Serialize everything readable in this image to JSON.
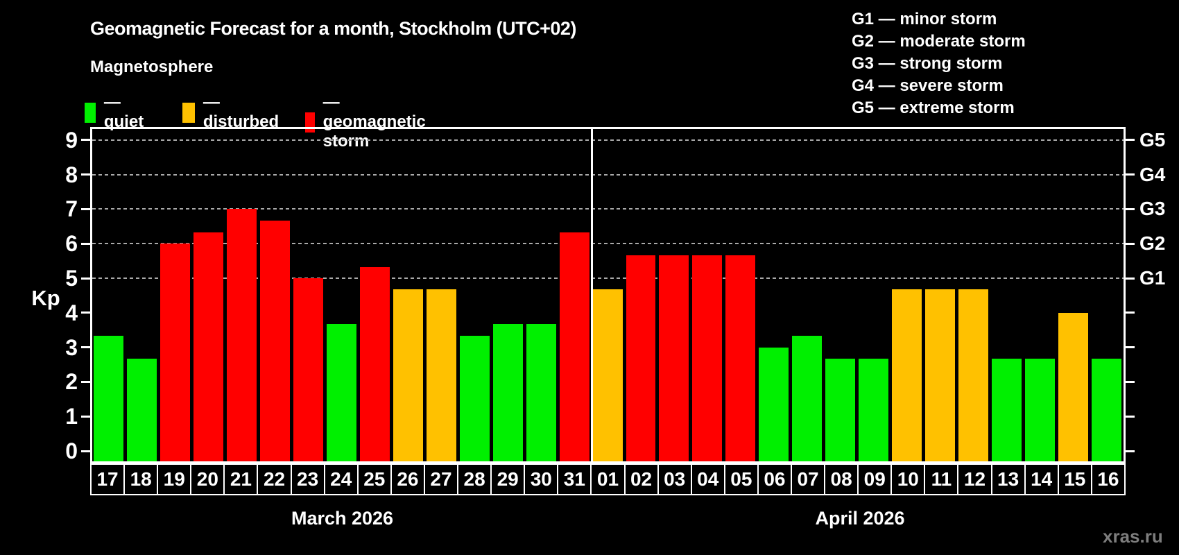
{
  "title": "Geomagnetic Forecast for a month, Stockholm (UTC+02)",
  "subtitle": "Magnetosphere",
  "legend": {
    "quiet": {
      "label": "— quiet",
      "color": "#00f000"
    },
    "disturbed": {
      "label": "— disturbed",
      "color": "#ffc100"
    },
    "storm": {
      "label": "— geomagnetic storm",
      "color": "#ff0000"
    }
  },
  "g_scale": [
    {
      "label": "G1 — minor storm"
    },
    {
      "label": "G2 — moderate storm"
    },
    {
      "label": "G3 — strong storm"
    },
    {
      "label": "G4 — severe storm"
    },
    {
      "label": "G5 — extreme storm"
    }
  ],
  "axis": {
    "kp_label": "Kp",
    "yticks": [
      0,
      1,
      2,
      3,
      4,
      5,
      6,
      7,
      8,
      9
    ],
    "right_labels": [
      {
        "label": "G1",
        "kp": 5
      },
      {
        "label": "G2",
        "kp": 6
      },
      {
        "label": "G3",
        "kp": 7
      },
      {
        "label": "G4",
        "kp": 8
      },
      {
        "label": "G5",
        "kp": 9
      }
    ]
  },
  "months": [
    {
      "name": "March 2026",
      "days": 15
    },
    {
      "name": "April 2026",
      "days": 16
    }
  ],
  "watermark": "xras.ru",
  "chart_data": {
    "type": "bar",
    "ylabel": "Kp",
    "ylim": [
      0,
      9.4
    ],
    "grid": "dashed horizontal at Kp 5-9 only",
    "gridlines_kp": [
      5,
      6,
      7,
      8,
      9
    ],
    "month_split_index": 15,
    "categories": [
      "17",
      "18",
      "19",
      "20",
      "21",
      "22",
      "23",
      "24",
      "25",
      "26",
      "27",
      "28",
      "29",
      "30",
      "31",
      "01",
      "02",
      "03",
      "04",
      "05",
      "06",
      "07",
      "08",
      "09",
      "10",
      "11",
      "12",
      "13",
      "14",
      "15",
      "16"
    ],
    "values": [
      3.33,
      2.67,
      6.0,
      6.33,
      7.0,
      6.67,
      5.0,
      3.67,
      5.33,
      4.67,
      4.67,
      3.33,
      3.67,
      3.67,
      6.33,
      4.67,
      5.67,
      5.67,
      5.67,
      5.67,
      3.0,
      3.33,
      2.67,
      2.67,
      4.67,
      4.67,
      4.67,
      2.67,
      2.67,
      4.0,
      2.67
    ],
    "statuses": [
      "quiet",
      "quiet",
      "storm",
      "storm",
      "storm",
      "storm",
      "storm",
      "quiet",
      "storm",
      "disturbed",
      "disturbed",
      "quiet",
      "quiet",
      "quiet",
      "storm",
      "disturbed",
      "storm",
      "storm",
      "storm",
      "storm",
      "quiet",
      "quiet",
      "quiet",
      "quiet",
      "disturbed",
      "disturbed",
      "disturbed",
      "quiet",
      "quiet",
      "disturbed",
      "quiet"
    ]
  }
}
